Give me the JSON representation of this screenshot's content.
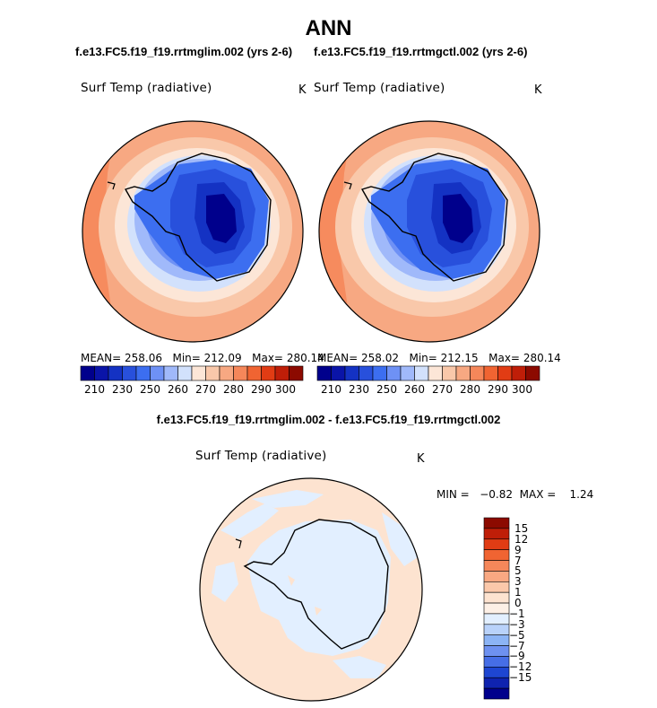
{
  "title": "ANN",
  "panels": [
    {
      "case_title": "f.e13.FC5.f19_f19.rrtmglim.002 (yrs 2-6)",
      "field": "Surf Temp (radiative)",
      "units": "K",
      "stats": {
        "mean_label": "MEAN=",
        "mean": "258.06",
        "min_label": "Min=",
        "min": "212.09",
        "max_label": "Max=",
        "max": "280.14"
      }
    },
    {
      "case_title": "f.e13.FC5.f19_f19.rrtmgctl.002 (yrs 2-6)",
      "field": "Surf Temp (radiative)",
      "units": "K",
      "stats": {
        "mean_label": "MEAN=",
        "mean": "258.02",
        "min_label": "Min=",
        "min": "212.15",
        "max_label": "Max=",
        "max": "280.14"
      }
    }
  ],
  "colorbar": {
    "colors": [
      "#00008c",
      "#0a14a8",
      "#1432c3",
      "#2850dc",
      "#3c6ef0",
      "#6e91f5",
      "#a0b9fa",
      "#d2e1fc",
      "#fce6d7",
      "#f9c8aa",
      "#f7a882",
      "#f5875a",
      "#f06432",
      "#e13c14",
      "#bf1e08",
      "#8c0a00"
    ],
    "labels": [
      "210",
      "230",
      "250",
      "260",
      "270",
      "280",
      "290",
      "300"
    ]
  },
  "diff_panel": {
    "title": "f.e13.FC5.f19_f19.rrtmglim.002 - f.e13.FC5.f19_f19.rrtmgctl.002",
    "field": "Surf Temp (radiative)",
    "units": "K",
    "min_label": "MIN =",
    "min": "−0.82",
    "max_label": "MAX =",
    "max": "1.24",
    "colorbar": {
      "colors": [
        "#8c0a00",
        "#bf1e08",
        "#e13c14",
        "#f06432",
        "#f5875a",
        "#f9a882",
        "#fbc8aa",
        "#fde3d0",
        "#fdf0e6",
        "#e2efff",
        "#b9d2fa",
        "#8cb4f5",
        "#6e91f0",
        "#466ee6",
        "#1e46d2",
        "#0f23af",
        "#00008c"
      ],
      "labels": [
        "15",
        "12",
        "9",
        "7",
        "5",
        "3",
        "1",
        "0",
        "−1",
        "−3",
        "−5",
        "−7",
        "−9",
        "−12",
        "−15"
      ]
    }
  }
}
